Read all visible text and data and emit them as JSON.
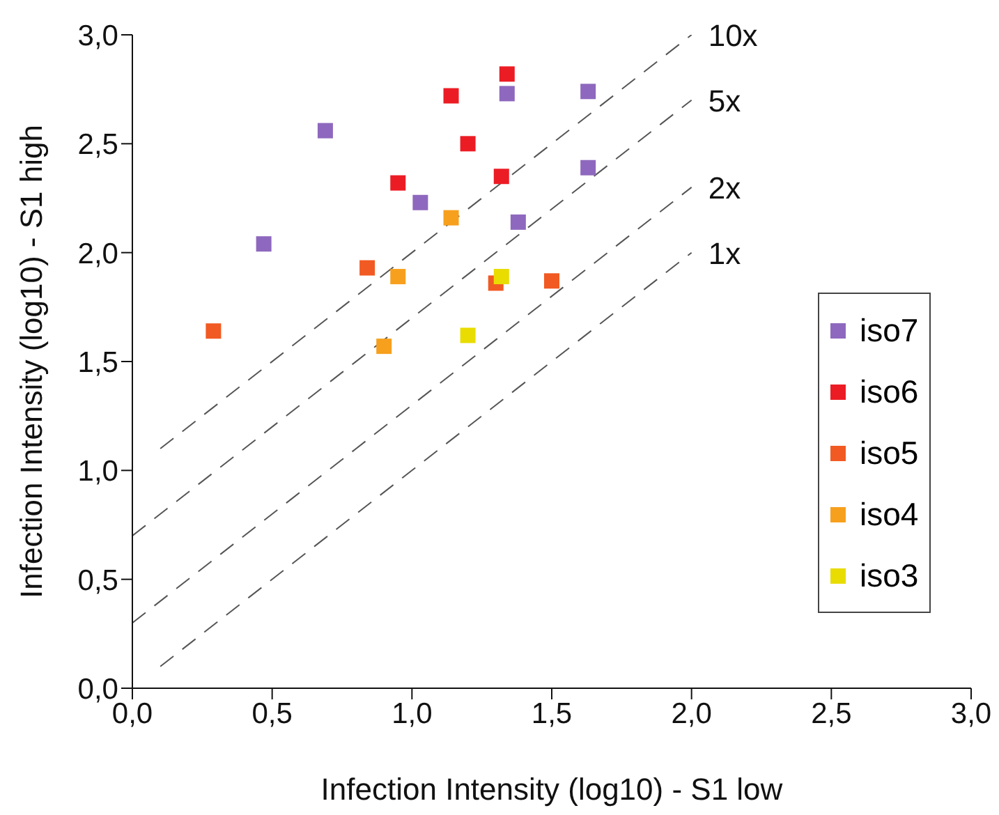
{
  "chart_data": {
    "type": "scatter",
    "xlabel": "Infection Intensity (log10) - S1 low",
    "ylabel": "Infection Intensity (log10) - S1 high",
    "xlim": [
      0,
      3
    ],
    "ylim": [
      0,
      3
    ],
    "xticks": [
      {
        "value": 0,
        "label": "0,0"
      },
      {
        "value": 0.5,
        "label": "0,5"
      },
      {
        "value": 1,
        "label": "1,0"
      },
      {
        "value": 1.5,
        "label": "1,5"
      },
      {
        "value": 2,
        "label": "2,0"
      },
      {
        "value": 2.5,
        "label": "2,5"
      },
      {
        "value": 3,
        "label": "3,0"
      }
    ],
    "yticks": [
      {
        "value": 0,
        "label": "0,0"
      },
      {
        "value": 0.5,
        "label": "0,5"
      },
      {
        "value": 1,
        "label": "1,0"
      },
      {
        "value": 1.5,
        "label": "1,5"
      },
      {
        "value": 2,
        "label": "2,0"
      },
      {
        "value": 2.5,
        "label": "2,5"
      },
      {
        "value": 3,
        "label": "3,0"
      }
    ],
    "grid": false,
    "legend": "right",
    "marker": "square",
    "series": [
      {
        "name": "iso7",
        "color": "#8e68be",
        "x": [
          0.47,
          0.69,
          1.03,
          1.34,
          1.38,
          1.63,
          1.63
        ],
        "values": [
          2.04,
          2.56,
          2.23,
          2.73,
          2.14,
          2.74,
          2.39
        ]
      },
      {
        "name": "iso6",
        "color": "#ec1c24",
        "x": [
          1.14,
          1.34,
          1.2,
          0.95,
          1.32
        ],
        "values": [
          2.72,
          2.82,
          2.5,
          2.32,
          2.35
        ]
      },
      {
        "name": "iso5",
        "color": "#f15a22",
        "x": [
          0.29,
          0.84,
          1.3,
          1.5
        ],
        "values": [
          1.64,
          1.93,
          1.86,
          1.87
        ]
      },
      {
        "name": "iso4",
        "color": "#f7a01d",
        "x": [
          1.14,
          0.95,
          0.9
        ],
        "values": [
          2.16,
          1.89,
          1.57
        ]
      },
      {
        "name": "iso3",
        "color": "#e8dc00",
        "x": [
          1.32,
          1.2
        ],
        "values": [
          1.89,
          1.62
        ]
      },
      {
        "name": "10x",
        "type": "line",
        "color": "#555555",
        "line_style": "dashed",
        "marker": "none",
        "x": [
          0.1,
          2.0
        ],
        "values": [
          1.1,
          3.0
        ]
      },
      {
        "name": "5x",
        "type": "line",
        "color": "#555555",
        "line_style": "dashed",
        "marker": "none",
        "x": [
          0,
          2.0
        ],
        "values": [
          0.7,
          2.7
        ]
      },
      {
        "name": "2x",
        "type": "line",
        "color": "#555555",
        "line_style": "dashed",
        "marker": "none",
        "x": [
          0,
          2.0
        ],
        "values": [
          0.3,
          2.3
        ]
      },
      {
        "name": "1x",
        "type": "line",
        "color": "#555555",
        "line_style": "dashed",
        "marker": "none",
        "x": [
          0.1,
          2.0
        ],
        "values": [
          0.1,
          2.0
        ]
      }
    ]
  }
}
